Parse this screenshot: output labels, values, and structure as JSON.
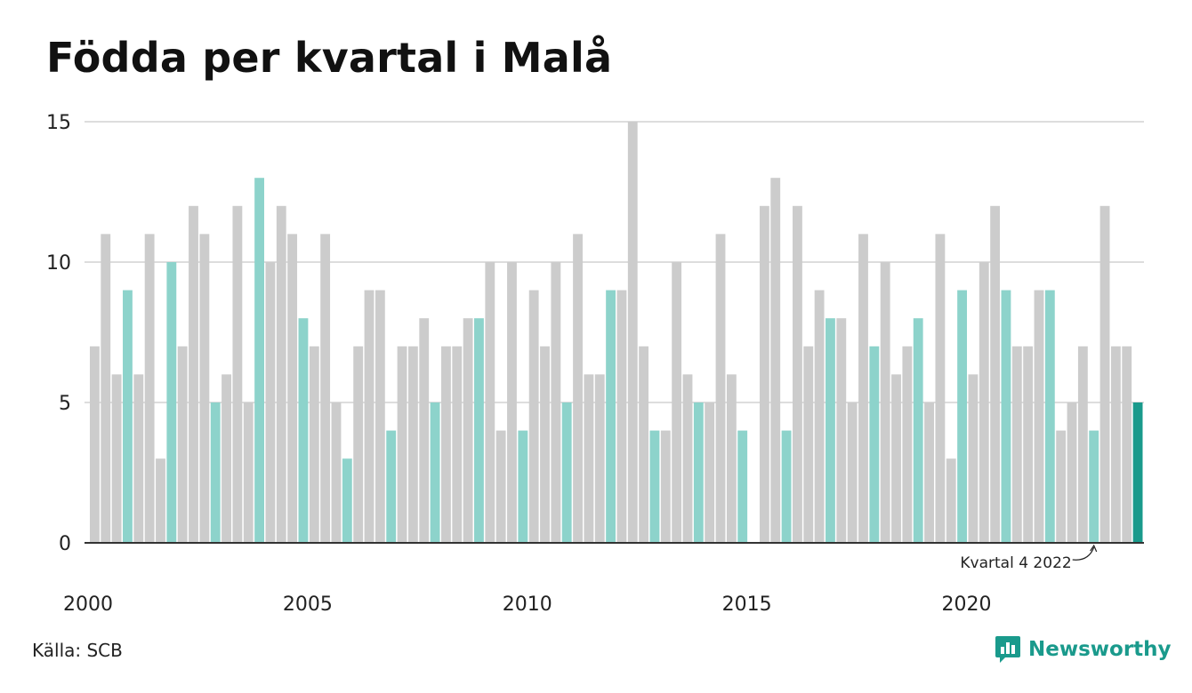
{
  "title": "Födda per kvartal i Malå",
  "source": "Källa: SCB",
  "brand": {
    "name": "Newsworthy",
    "logo_icon": "bar-chart-bubble-icon"
  },
  "colors": {
    "bar_default": "#cccccc",
    "bar_quarter4": "#8dd3cb",
    "bar_latest": "#1a9a8c",
    "grid": "#dddddd",
    "axis": "#333333",
    "brand": "#1a9a8c"
  },
  "chart_data": {
    "type": "bar",
    "title": "Födda per kvartal i Malå",
    "xlabel": "",
    "ylabel": "",
    "ylim": [
      0,
      15
    ],
    "yticks": [
      0,
      5,
      10,
      15
    ],
    "xticks": [
      "2000",
      "2005",
      "2010",
      "2015",
      "2020"
    ],
    "grid": true,
    "start_year": 2000,
    "highlight": "Kvartal 4 highlighted each year; latest quarter emphasized",
    "annotation": {
      "text": "Kvartal 4 2022",
      "target_year": 2022,
      "target_quarter": 4
    },
    "values": [
      7,
      11,
      6,
      9,
      6,
      11,
      3,
      10,
      7,
      12,
      11,
      5,
      6,
      12,
      5,
      13,
      10,
      12,
      11,
      8,
      7,
      11,
      5,
      3,
      7,
      9,
      9,
      4,
      7,
      7,
      8,
      5,
      7,
      7,
      8,
      8,
      10,
      4,
      10,
      4,
      9,
      7,
      10,
      5,
      11,
      6,
      6,
      9,
      9,
      15,
      7,
      4,
      4,
      10,
      6,
      5,
      5,
      11,
      6,
      4,
      0,
      12,
      13,
      4,
      12,
      7,
      9,
      8,
      8,
      5,
      11,
      7,
      10,
      6,
      7,
      8,
      5,
      11,
      3,
      9,
      6,
      10,
      12,
      9,
      7,
      7,
      9,
      9,
      4,
      5,
      7,
      4,
      12,
      7,
      7,
      5
    ]
  }
}
